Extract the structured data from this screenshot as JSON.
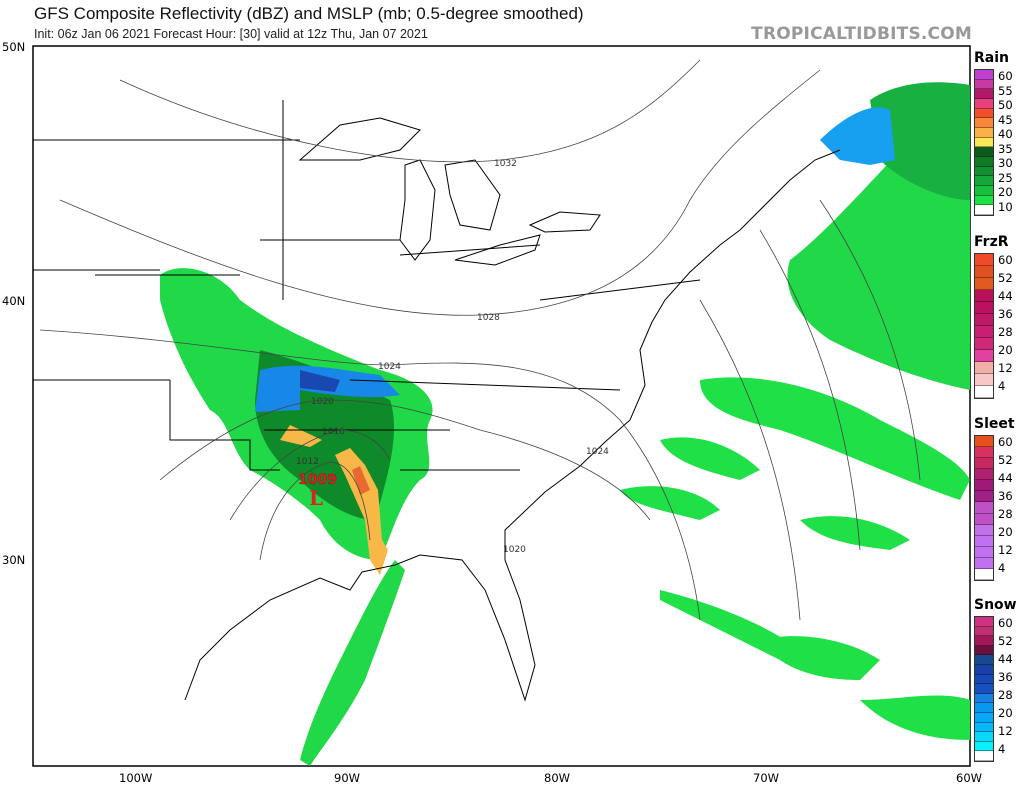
{
  "header": {
    "title": "GFS Composite Reflectivity (dBZ) and MSLP (mb; 0.5-degree smoothed)",
    "subtitle": "Init: 06z Jan 06 2021   Forecast Hour: [30]   valid at 12z Thu, Jan 07 2021",
    "site": "TROPICALTIDBITS.COM"
  },
  "axes": {
    "lat_labels": [
      "50N",
      "40N",
      "30N"
    ],
    "lon_labels": [
      "100W",
      "90W",
      "80W",
      "70W",
      "60W"
    ]
  },
  "map": {
    "isobar_labels": [
      "1032",
      "1028",
      "1024",
      "1024",
      "1020",
      "1020",
      "1016",
      "1012"
    ],
    "low": {
      "pressure": "1009",
      "symbol": "L",
      "color": "#e0201e"
    }
  },
  "legends": [
    {
      "title": "Rain",
      "labels": [
        "60",
        "55",
        "50",
        "45",
        "40",
        "35",
        "30",
        "25",
        "20",
        "10"
      ],
      "colors": [
        "#c040d0",
        "#c83aa0",
        "#b0186a",
        "#e8407a",
        "#f05028",
        "#f88838",
        "#f8b048",
        "#f8e858",
        "#0a5a1e",
        "#0e7a26",
        "#109030",
        "#14a838",
        "#18c040",
        "#20e048",
        "#ffffff"
      ]
    },
    {
      "title": "FrzR",
      "labels": [
        "60",
        "52",
        "44",
        "36",
        "28",
        "20",
        "12",
        "4"
      ],
      "colors": [
        "#f04a28",
        "#e05020",
        "#e05a20",
        "#b8105a",
        "#b81260",
        "#c01868",
        "#c82070",
        "#d02878",
        "#e040a0",
        "#f0b0a8",
        "#f8c8c8",
        "#ffffff"
      ]
    },
    {
      "title": "Sleet",
      "labels": [
        "60",
        "52",
        "44",
        "36",
        "28",
        "20",
        "12",
        "4"
      ],
      "colors": [
        "#e85020",
        "#d83060",
        "#c82860",
        "#b02070",
        "#a01878",
        "#a02088",
        "#c050c8",
        "#c050c8",
        "#c070e8",
        "#c070f0",
        "#c070f0",
        "#c070f0",
        "#ffffff"
      ]
    },
    {
      "title": "Snow",
      "labels": [
        "60",
        "52",
        "44",
        "36",
        "28",
        "20",
        "12",
        "4"
      ],
      "colors": [
        "#d03080",
        "#c03070",
        "#a01858",
        "#6a1040",
        "#184890",
        "#1840a8",
        "#1848b8",
        "#1850c0",
        "#1880e0",
        "#0898f0",
        "#08a8f8",
        "#08b8f8",
        "#08d8f8",
        "#08f0f8",
        "#ffffff"
      ]
    }
  ]
}
